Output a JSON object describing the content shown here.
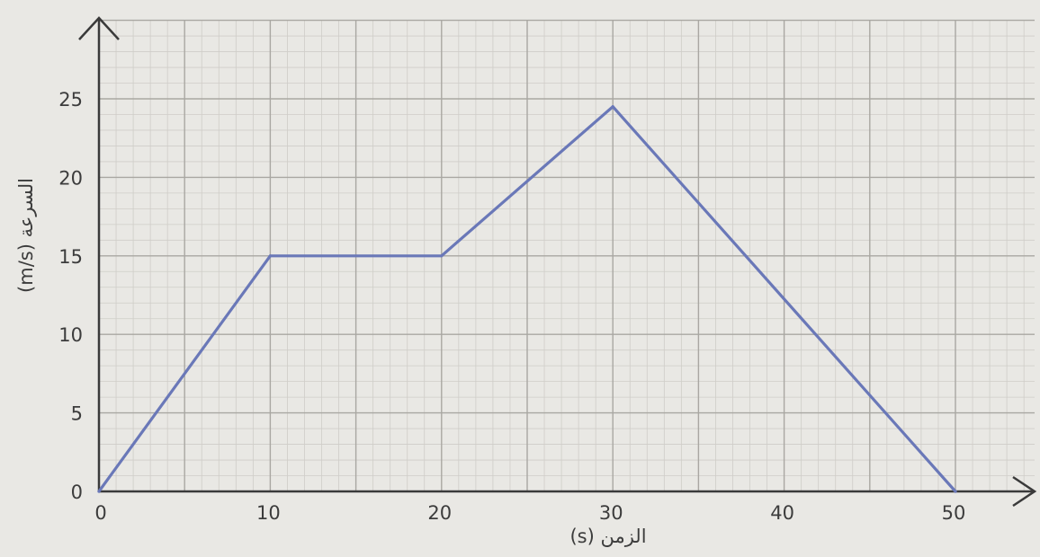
{
  "chart_data": {
    "type": "line",
    "title": "",
    "xlabel": "الزمن (s)",
    "ylabel": "السرعة (m/s)",
    "x_ticks": [
      "0",
      "10",
      "20",
      "30",
      "40",
      "50"
    ],
    "y_ticks": [
      "0",
      "5",
      "10",
      "15",
      "20",
      "25"
    ],
    "xlim": [
      0,
      50
    ],
    "ylim": [
      0,
      25
    ],
    "grid": true,
    "minor_grid_step": 1,
    "major_grid_step": 5,
    "series": [
      {
        "x": [
          0,
          10,
          20,
          30,
          50
        ],
        "y": [
          0,
          15,
          15,
          24.5,
          0
        ],
        "color": "#6a78b8"
      }
    ]
  }
}
